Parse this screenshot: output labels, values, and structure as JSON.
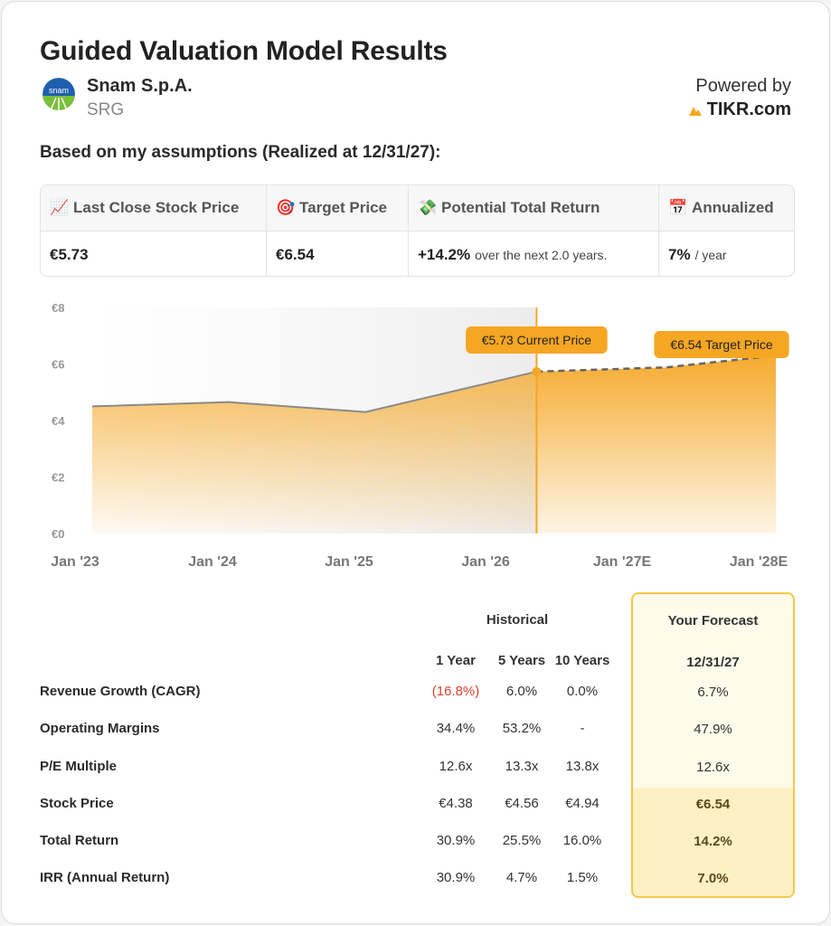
{
  "header": {
    "title": "Guided Valuation Model Results",
    "company": "Snam S.p.A.",
    "ticker": "SRG",
    "logo_text": "snam",
    "powered_by": "Powered by",
    "brand": "TIKR.com"
  },
  "subhead": "Based on my assumptions (Realized at 12/31/27):",
  "metrics": [
    {
      "icon": "chart-up-icon",
      "glyph": "📈",
      "label": "Last Close Stock Price",
      "value": "€5.73",
      "note": ""
    },
    {
      "icon": "target-icon",
      "glyph": "🎯",
      "label": "Target Price",
      "value": "€6.54",
      "note": ""
    },
    {
      "icon": "money-icon",
      "glyph": "💸",
      "label": "Potential Total Return",
      "value": "+14.2%",
      "note": "over the next 2.0 years."
    },
    {
      "icon": "calendar-icon",
      "glyph": "📅",
      "label": "Annualized",
      "value": "7%",
      "note": "/ year"
    }
  ],
  "chart_data": {
    "type": "area",
    "x": [
      "Jan '23",
      "Jan '24",
      "Jan '25",
      "Jan '26",
      "Jan '27E",
      "Jan '28E"
    ],
    "y_ticks": [
      "€0",
      "€2",
      "€4",
      "€6",
      "€8"
    ],
    "ylim": [
      0,
      8
    ],
    "historical": [
      {
        "x": 0,
        "y": 4.5
      },
      {
        "x": 1,
        "y": 4.65
      },
      {
        "x": 2,
        "y": 4.3
      },
      {
        "x": 3.25,
        "y": 5.73
      }
    ],
    "forecast": [
      {
        "x": 3.25,
        "y": 5.73
      },
      {
        "x": 4.2,
        "y": 5.88
      },
      {
        "x": 5,
        "y": 6.3
      }
    ],
    "current_label": "€5.73 Current Price",
    "target_label": "€6.54 Target Price",
    "accent": "#f5a623"
  },
  "table": {
    "historical_header": "Historical",
    "forecast_header": "Your Forecast",
    "columns": [
      "1 Year",
      "5 Years",
      "10 Years"
    ],
    "forecast_date": "12/31/27",
    "rows": [
      {
        "label": "Revenue Growth (CAGR)",
        "values": [
          "(16.8%)",
          "6.0%",
          "0.0%"
        ],
        "forecast": "6.7%"
      },
      {
        "label": "Operating Margins",
        "values": [
          "34.4%",
          "53.2%",
          "-"
        ],
        "forecast": "47.9%"
      },
      {
        "label": "P/E Multiple",
        "values": [
          "12.6x",
          "13.3x",
          "13.8x"
        ],
        "forecast": "12.6x"
      },
      {
        "label": "Stock Price",
        "values": [
          "€4.38",
          "€4.56",
          "€4.94"
        ],
        "forecast": "€6.54"
      },
      {
        "label": "Total Return",
        "values": [
          "30.9%",
          "25.5%",
          "16.0%"
        ],
        "forecast": "14.2%"
      },
      {
        "label": "IRR (Annual Return)",
        "values": [
          "30.9%",
          "4.7%",
          "1.5%"
        ],
        "forecast": "7.0%"
      }
    ]
  }
}
